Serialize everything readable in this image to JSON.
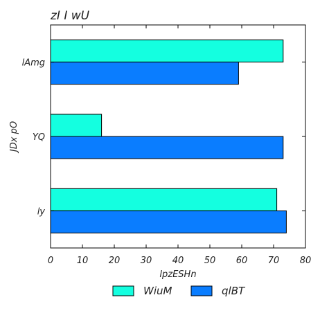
{
  "chart_data": {
    "type": "bar",
    "orientation": "horizontal",
    "title": "zI  I wU",
    "xlabel": "lpzESHn",
    "ylabel": "JDx pO",
    "categories": [
      "lAmg",
      "YQ",
      "ly"
    ],
    "series": [
      {
        "name": "WiuM",
        "color": "#14ffe0",
        "values": [
          73,
          16,
          71
        ]
      },
      {
        "name": "qlBT",
        "color": "#0a7dff",
        "values": [
          59,
          73,
          74
        ]
      }
    ],
    "xlim": [
      0,
      80
    ],
    "xticks": [
      0,
      10,
      20,
      30,
      40,
      50,
      60,
      70,
      80
    ],
    "grid": false,
    "legend_position": "bottom"
  }
}
